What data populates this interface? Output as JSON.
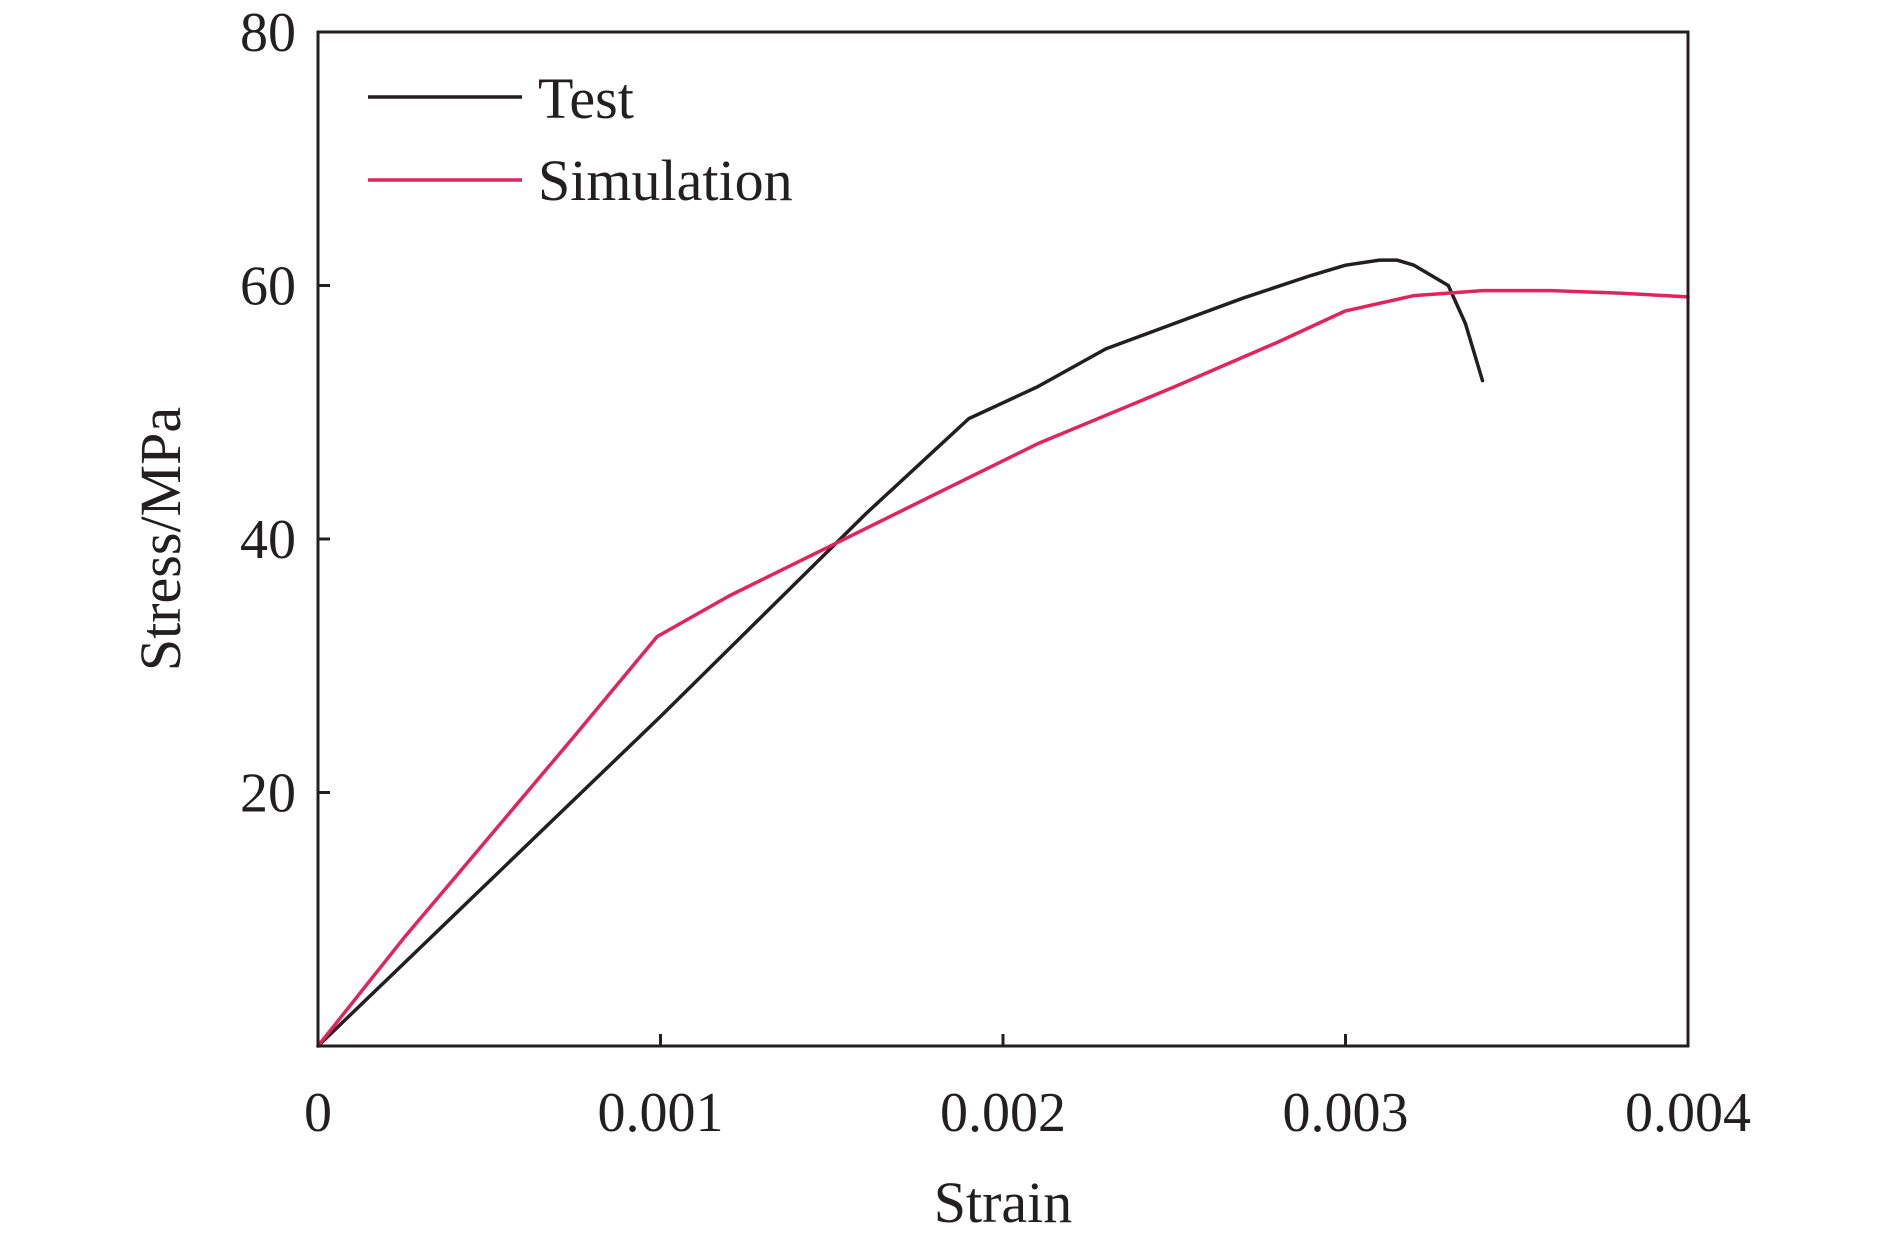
{
  "chart_data": {
    "type": "line",
    "title": "",
    "xlabel": "Strain",
    "ylabel": "Stress/MPa",
    "xlim": [
      0,
      0.004
    ],
    "ylim": [
      0,
      80
    ],
    "x_ticks": [
      0,
      0.001,
      0.002,
      0.003,
      0.004
    ],
    "x_tick_labels": [
      "0",
      "0.001",
      "0.002",
      "0.003",
      "0.004"
    ],
    "y_ticks": [
      20,
      40,
      60,
      80
    ],
    "y_tick_labels": [
      "20",
      "40",
      "60",
      "80"
    ],
    "grid": false,
    "legend_position": "top-left",
    "series": [
      {
        "name": "Test",
        "color": "#231f20",
        "x": [
          0,
          0.0005,
          0.001,
          0.0013,
          0.0016,
          0.0018,
          0.0019,
          0.0021,
          0.0023,
          0.0025,
          0.0027,
          0.0029,
          0.003,
          0.0031,
          0.00315,
          0.0032,
          0.0033,
          0.00335,
          0.0034
        ],
        "y": [
          0,
          13,
          26,
          34,
          42,
          47,
          49.5,
          52,
          55,
          57,
          59,
          60.8,
          61.6,
          62,
          62,
          61.6,
          60,
          57,
          52.5
        ]
      },
      {
        "name": "Simulation",
        "color": "#e0245e",
        "x": [
          0,
          0.00025,
          0.0005,
          0.00075,
          0.00099,
          0.0012,
          0.0015,
          0.0018,
          0.0021,
          0.0025,
          0.0028,
          0.003,
          0.0032,
          0.0034,
          0.0036,
          0.0038,
          0.004
        ],
        "y": [
          0,
          8.5,
          16.5,
          24.5,
          32.3,
          35.5,
          39.5,
          43.5,
          47.5,
          52,
          55.5,
          58,
          59.2,
          59.6,
          59.6,
          59.4,
          59.1
        ]
      }
    ]
  }
}
